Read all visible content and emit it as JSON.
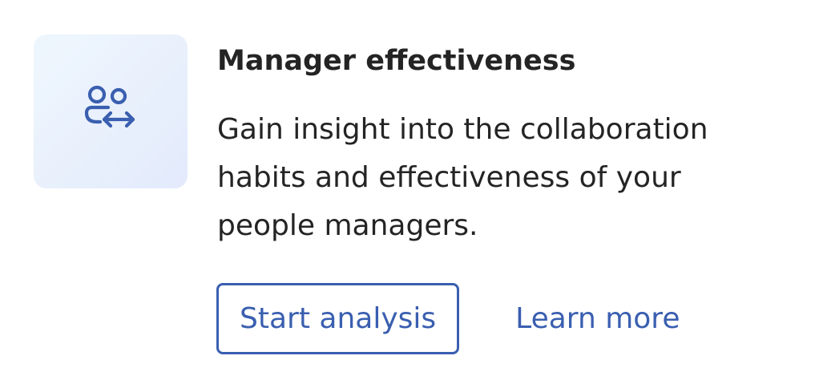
{
  "card": {
    "icon": "people-swap-icon",
    "title": "Manager effectiveness",
    "description": "Gain insight into the collaboration habits and effectiveness of your people managers.",
    "primary_action_label": "Start analysis",
    "secondary_action_label": "Learn more"
  },
  "colors": {
    "accent": "#3a5fb0",
    "text": "#242424",
    "tile_bg_start": "#eff7fd",
    "tile_bg_end": "#e3eafc"
  }
}
